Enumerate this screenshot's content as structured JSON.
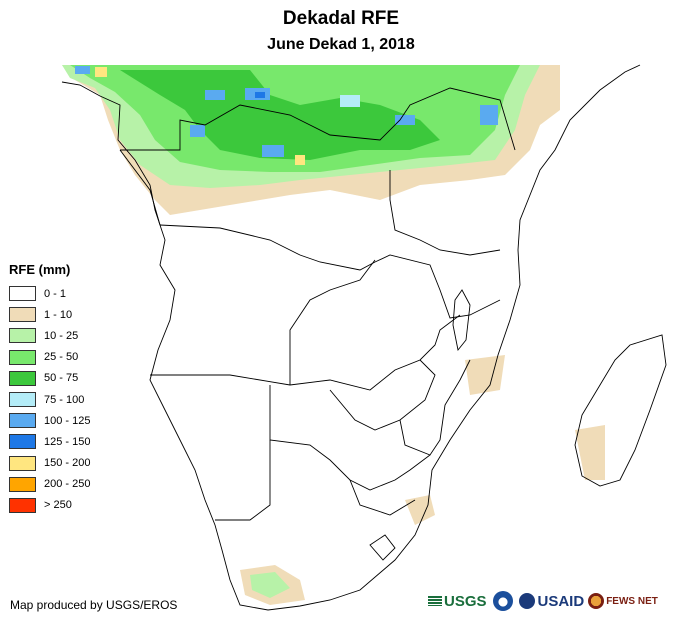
{
  "title": "Dekadal RFE",
  "subtitle": "June Dekad 1, 2018",
  "legend": {
    "title": "RFE (mm)",
    "items": [
      {
        "label": "0 - 1",
        "color": "#ffffff"
      },
      {
        "label": "1 - 10",
        "color": "#f0dcb8"
      },
      {
        "label": "10 - 25",
        "color": "#b7f2a8"
      },
      {
        "label": "25 - 50",
        "color": "#78e86c"
      },
      {
        "label": "50 - 75",
        "color": "#3cc83c"
      },
      {
        "label": "75 - 100",
        "color": "#b4ecf7"
      },
      {
        "label": "100 - 125",
        "color": "#5aaaf0"
      },
      {
        "label": "125 - 150",
        "color": "#1e78e6"
      },
      {
        "label": "150 - 200",
        "color": "#ffe680"
      },
      {
        "label": "200 - 250",
        "color": "#ffa500"
      },
      {
        "label": "> 250",
        "color": "#ff3200"
      }
    ]
  },
  "credit": "Map produced by USGS/EROS",
  "logos": {
    "usgs": "USGS",
    "usaid": "USAID",
    "fews": "FEWS NET"
  }
}
